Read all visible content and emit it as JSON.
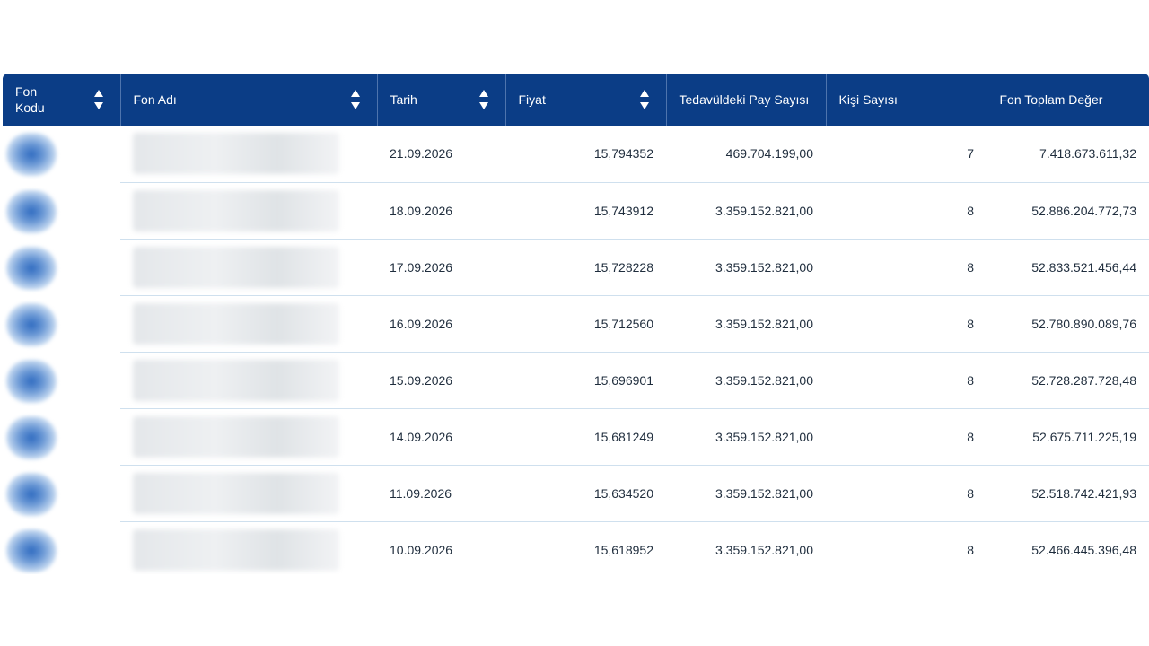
{
  "table": {
    "columns": [
      {
        "label": "Fon Kodu",
        "sortable": true
      },
      {
        "label": "Fon Adı",
        "sortable": true
      },
      {
        "label": "Tarih",
        "sortable": true
      },
      {
        "label": "Fiyat",
        "sortable": true
      },
      {
        "label": "Tedavüldeki Pay Sayısı",
        "sortable": false
      },
      {
        "label": "Kişi Sayısı",
        "sortable": false
      },
      {
        "label": "Fon Toplam Değer",
        "sortable": false
      }
    ],
    "rows": [
      {
        "tarih": "21.09.2026",
        "fiyat": "15,794352",
        "pay": "469.704.199,00",
        "kisi": "7",
        "toplam": "7.418.673.611,32"
      },
      {
        "tarih": "18.09.2026",
        "fiyat": "15,743912",
        "pay": "3.359.152.821,00",
        "kisi": "8",
        "toplam": "52.886.204.772,73"
      },
      {
        "tarih": "17.09.2026",
        "fiyat": "15,728228",
        "pay": "3.359.152.821,00",
        "kisi": "8",
        "toplam": "52.833.521.456,44"
      },
      {
        "tarih": "16.09.2026",
        "fiyat": "15,712560",
        "pay": "3.359.152.821,00",
        "kisi": "8",
        "toplam": "52.780.890.089,76"
      },
      {
        "tarih": "15.09.2026",
        "fiyat": "15,696901",
        "pay": "3.359.152.821,00",
        "kisi": "8",
        "toplam": "52.728.287.728,48"
      },
      {
        "tarih": "14.09.2026",
        "fiyat": "15,681249",
        "pay": "3.359.152.821,00",
        "kisi": "8",
        "toplam": "52.675.711.225,19"
      },
      {
        "tarih": "11.09.2026",
        "fiyat": "15,634520",
        "pay": "3.359.152.821,00",
        "kisi": "8",
        "toplam": "52.518.742.421,93"
      },
      {
        "tarih": "10.09.2026",
        "fiyat": "15,618952",
        "pay": "3.359.152.821,00",
        "kisi": "8",
        "toplam": "52.466.445.396,48"
      }
    ]
  }
}
